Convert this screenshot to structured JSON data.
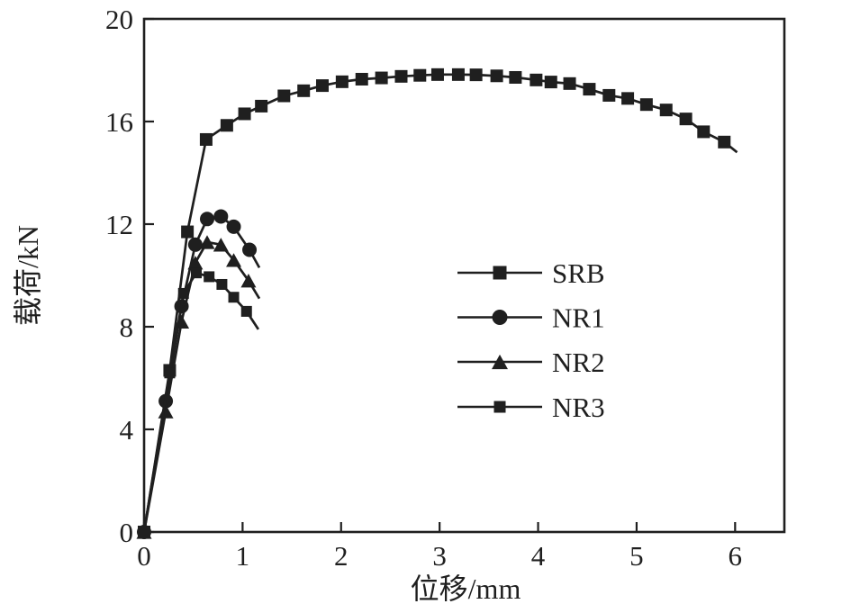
{
  "figure": {
    "background_color": "#ffffff",
    "ink_color": "#1f1f1f"
  },
  "chart_data": {
    "type": "line",
    "title": "",
    "xlabel": "位移/mm",
    "ylabel": "载荷/kN",
    "xlim": [
      0,
      6.5
    ],
    "ylim": [
      0,
      20
    ],
    "xticks": [
      0,
      1,
      2,
      3,
      4,
      5,
      6
    ],
    "yticks": [
      0,
      4,
      8,
      12,
      16,
      20
    ],
    "grid": false,
    "legend_position": "inside center-right",
    "series": [
      {
        "name": "SRB",
        "marker": "square",
        "marker_size": 14,
        "color": "#1f1f1f",
        "points": [
          [
            0,
            0
          ],
          [
            0.26,
            6.3
          ],
          [
            0.44,
            11.7
          ],
          [
            0.63,
            15.3
          ],
          [
            0.84,
            15.85
          ],
          [
            1.02,
            16.3
          ],
          [
            1.19,
            16.6
          ],
          [
            1.42,
            17.0
          ],
          [
            1.62,
            17.2
          ],
          [
            1.81,
            17.4
          ],
          [
            2.01,
            17.55
          ],
          [
            2.21,
            17.65
          ],
          [
            2.41,
            17.7
          ],
          [
            2.61,
            17.76
          ],
          [
            2.8,
            17.8
          ],
          [
            2.98,
            17.83
          ],
          [
            3.19,
            17.83
          ],
          [
            3.37,
            17.82
          ],
          [
            3.58,
            17.78
          ],
          [
            3.77,
            17.72
          ],
          [
            3.98,
            17.62
          ],
          [
            4.13,
            17.54
          ],
          [
            4.32,
            17.48
          ],
          [
            4.52,
            17.26
          ],
          [
            4.72,
            17.02
          ],
          [
            4.91,
            16.9
          ],
          [
            5.1,
            16.66
          ],
          [
            5.3,
            16.45
          ],
          [
            5.5,
            16.1
          ],
          [
            5.68,
            15.6
          ],
          [
            5.89,
            15.2
          ]
        ],
        "line_end": [
          6.02,
          14.8
        ]
      },
      {
        "name": "NR1",
        "marker": "circle",
        "marker_size": 16,
        "color": "#1f1f1f",
        "points": [
          [
            0,
            0
          ],
          [
            0.22,
            5.1
          ],
          [
            0.38,
            8.8
          ],
          [
            0.52,
            11.2
          ],
          [
            0.64,
            12.2
          ],
          [
            0.78,
            12.3
          ],
          [
            0.91,
            11.9
          ],
          [
            1.07,
            11.0
          ]
        ],
        "line_end": [
          1.17,
          10.3
        ]
      },
      {
        "name": "NR2",
        "marker": "triangle",
        "marker_size": 17,
        "color": "#1f1f1f",
        "points": [
          [
            0,
            0
          ],
          [
            0.22,
            4.7
          ],
          [
            0.38,
            8.2
          ],
          [
            0.52,
            10.5
          ],
          [
            0.64,
            11.3
          ],
          [
            0.78,
            11.2
          ],
          [
            0.91,
            10.6
          ],
          [
            1.06,
            9.8
          ]
        ],
        "line_end": [
          1.17,
          9.1
        ]
      },
      {
        "name": "NR3",
        "marker": "square",
        "marker_size": 12,
        "color": "#1f1f1f",
        "points": [
          [
            0,
            0
          ],
          [
            0.26,
            6.2
          ],
          [
            0.4,
            9.3
          ],
          [
            0.53,
            10.1
          ],
          [
            0.66,
            9.95
          ],
          [
            0.79,
            9.65
          ],
          [
            0.91,
            9.15
          ],
          [
            1.04,
            8.6
          ]
        ],
        "line_end": [
          1.16,
          7.9
        ]
      }
    ]
  }
}
